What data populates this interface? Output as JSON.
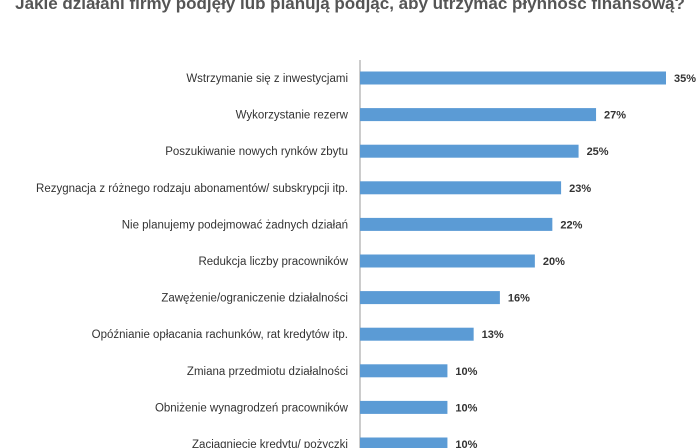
{
  "chart_data": {
    "type": "bar",
    "orientation": "horizontal",
    "title": "Jakie działani firmy podjęły lub planują podjąć, aby utrzymać płynność finansową?",
    "categories": [
      "Wstrzymanie się z inwestycjami",
      "Wykorzystanie rezerw",
      "Poszukiwanie nowych rynków zbytu",
      "Rezygnacja z różnego rodzaju abonamentów/ subskrypcji itp.",
      "Nie planujemy podejmować żadnych działań",
      "Redukcja liczby pracowników",
      "Zawężenie/ograniczenie działalności",
      "Opóźnianie opłacania rachunków, rat kredytów itp.",
      "Zmiana przedmiotu działalności",
      "Obniżenie wynagrodzeń pracowników",
      "Zaciągnięcie kredytu/ pożyczki"
    ],
    "values": [
      35,
      27,
      25,
      23,
      22,
      20,
      16,
      13,
      10,
      10,
      10
    ],
    "value_labels": [
      "35%",
      "27%",
      "25%",
      "23%",
      "22%",
      "20%",
      "16%",
      "13%",
      "10%",
      "10%",
      "10%"
    ],
    "unit": "%",
    "bar_color": "#5b9bd5",
    "axis_line_color": "#999999",
    "grid": false,
    "legend": "none"
  }
}
